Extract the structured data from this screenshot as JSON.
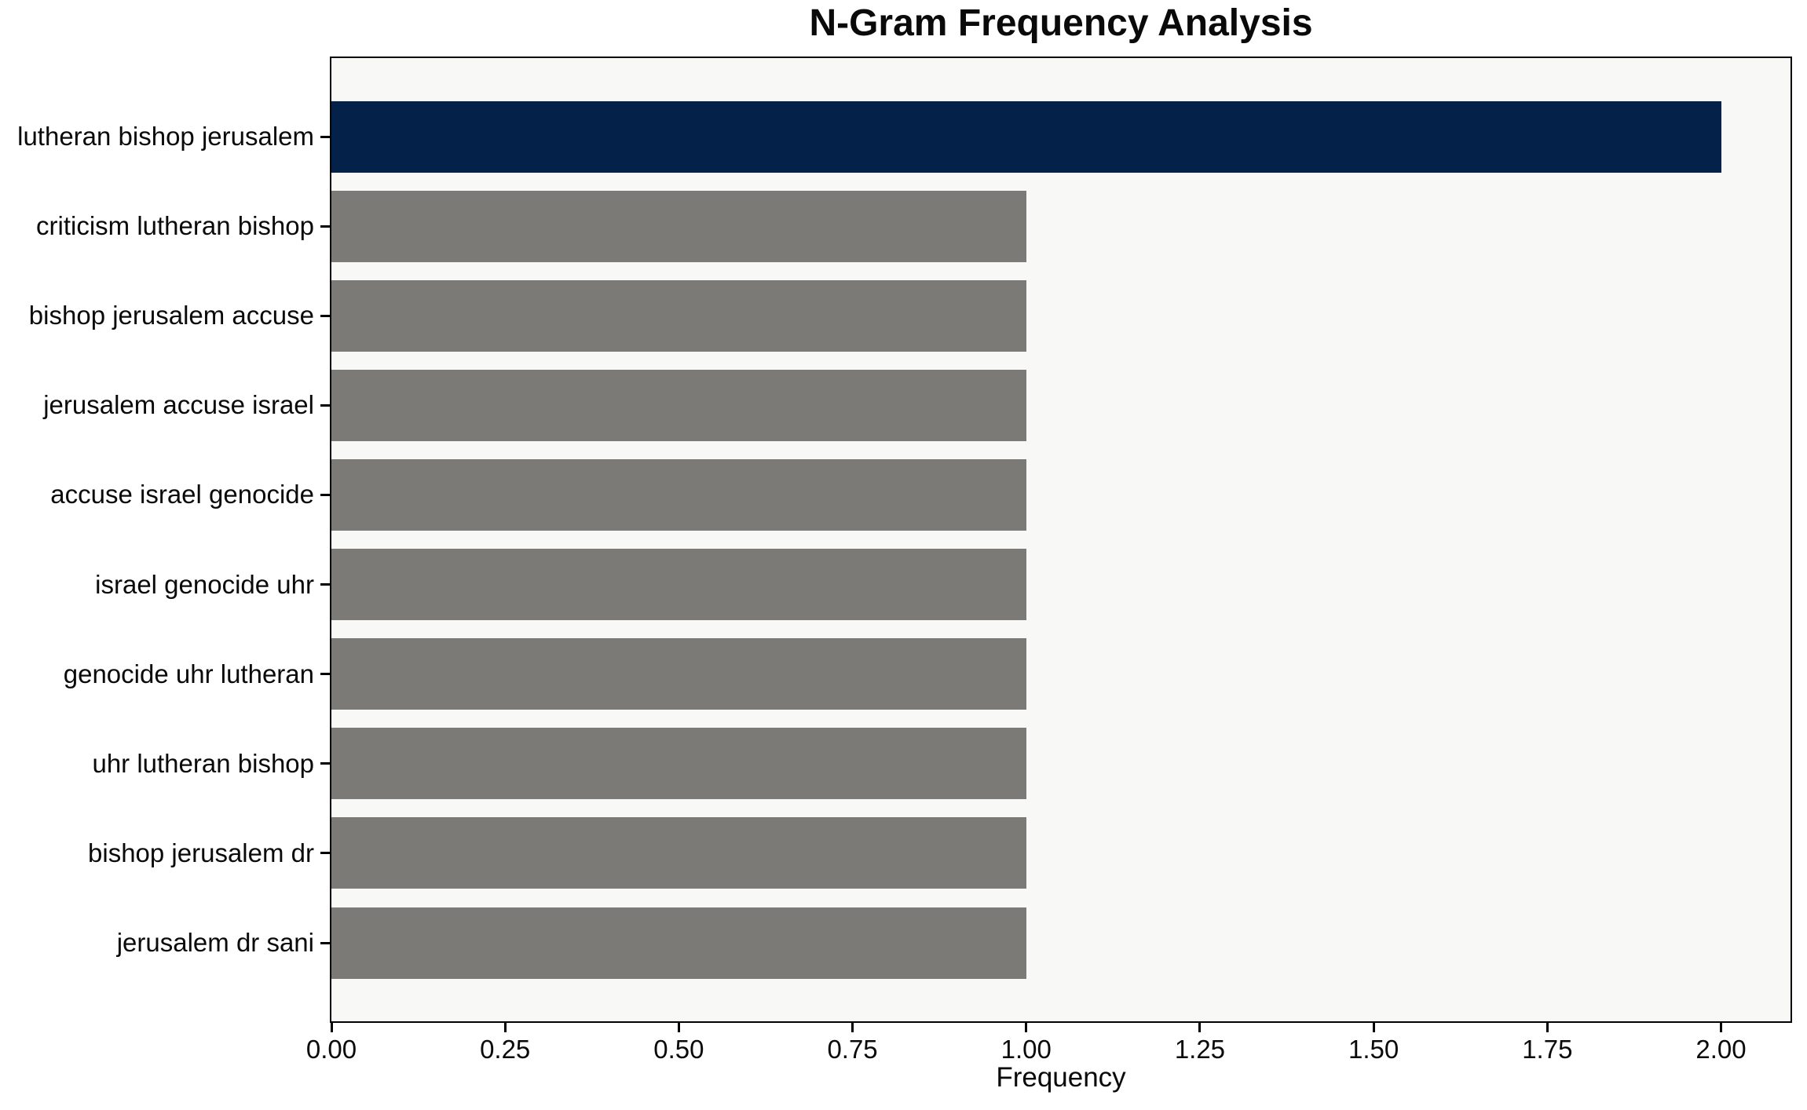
{
  "chart_data": {
    "type": "bar",
    "orientation": "horizontal",
    "title": "N-Gram Frequency Analysis",
    "xlabel": "Frequency",
    "categories": [
      "lutheran bishop jerusalem",
      "criticism lutheran bishop",
      "bishop jerusalem accuse",
      "jerusalem accuse israel",
      "accuse israel genocide",
      "israel genocide uhr",
      "genocide uhr lutheran",
      "uhr lutheran bishop",
      "bishop jerusalem dr",
      "jerusalem dr sani"
    ],
    "values": [
      2,
      1,
      1,
      1,
      1,
      1,
      1,
      1,
      1,
      1
    ],
    "xlim": [
      0,
      2.1
    ],
    "xtick_values": [
      0,
      0.25,
      0.5,
      0.75,
      1.0,
      1.25,
      1.5,
      1.75,
      2.0
    ],
    "xtick_labels": [
      "0.00",
      "0.25",
      "0.50",
      "0.75",
      "1.00",
      "1.25",
      "1.50",
      "1.75",
      "2.00"
    ],
    "highlight_index": 0,
    "colors": {
      "highlight_bar": "#032149",
      "default_bar": "#7b7a76",
      "plot_background": "#f8f8f7",
      "figure_background": "#ffffff",
      "spine": "#000000",
      "text": "#0a0a0a"
    },
    "legend": "none",
    "grid": false
  }
}
